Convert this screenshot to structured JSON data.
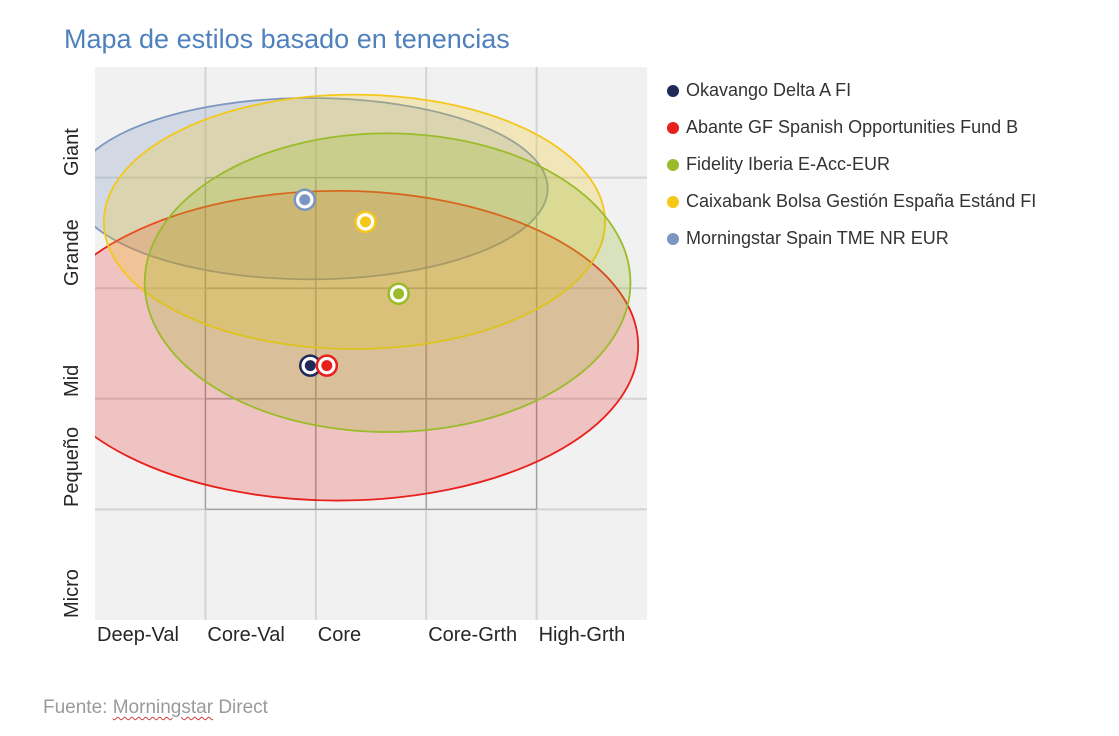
{
  "chart_data": {
    "type": "scatter",
    "title": "Mapa de estilos basado en tenencias",
    "x_categories": [
      "Deep-Val",
      "Core-Val",
      "Core",
      "Core-Grth",
      "High-Grth"
    ],
    "y_categories": [
      "Micro",
      "Pequeño",
      "Mid",
      "Grande",
      "Giant"
    ],
    "xlim": [
      0,
      5
    ],
    "ylim": [
      0,
      5
    ],
    "grid": true,
    "legend_position": "right",
    "core_box": {
      "x": [
        1,
        4
      ],
      "y": [
        1,
        4
      ]
    },
    "series": [
      {
        "name": "Okavango Delta A FI",
        "color": "#1f2a5a",
        "x": 1.95,
        "y": 2.3,
        "ellipse": {
          "cx": 1.95,
          "cy": 2.3,
          "rx": 0,
          "ry": 0
        }
      },
      {
        "name": "Abante GF Spanish Opportunities Fund B",
        "color": "#e8201c",
        "x": 2.1,
        "y": 2.3,
        "ellipse": {
          "cx": 2.2,
          "cy": 2.48,
          "rx": 2.72,
          "ry": 1.4
        }
      },
      {
        "name": "Fidelity Iberia E-Acc-EUR",
        "color": "#9abb2a",
        "x": 2.75,
        "y": 2.95,
        "ellipse": {
          "cx": 1.55,
          "cy": 3.05,
          "rx": 2.2,
          "ry": 1.35,
          "shift": 1.1
        }
      },
      {
        "name": "Caixabank Bolsa Gestión España Estánd FI",
        "color": "#f5c71a",
        "x": 2.45,
        "y": 3.6,
        "ellipse": {
          "cx": 2.35,
          "cy": 3.6,
          "rx": 2.27,
          "ry": 1.15
        }
      },
      {
        "name": "Morningstar Spain TME NR EUR",
        "color": "#7b96c0",
        "x": 1.9,
        "y": 3.8,
        "ellipse": {
          "cx": 1.95,
          "cy": 3.9,
          "rx": 2.15,
          "ry": 0.82
        }
      }
    ]
  },
  "source": {
    "prefix": "Fuente: ",
    "underlined": "Morningstar",
    "suffix": " Direct"
  }
}
